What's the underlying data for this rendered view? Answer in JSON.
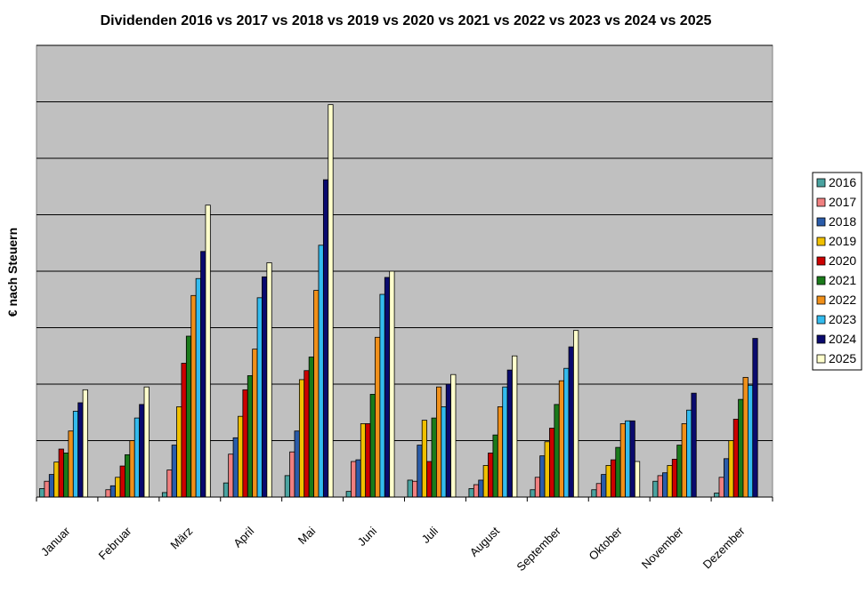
{
  "chart_data": {
    "type": "bar",
    "title": "Dividenden 2016 vs 2017 vs 2018 vs 2019 vs 2020 vs 2021 vs 2022 vs 2023 vs 2024 vs 2025",
    "xlabel": "",
    "ylabel": "€ nach Steuern",
    "ylim": [
      0,
      8
    ],
    "grid": true,
    "legend_position": "right",
    "plot_background": "#c0c0c0",
    "categories": [
      "Januar",
      "Februar",
      "März",
      "April",
      "Mai",
      "Juni",
      "Juli",
      "August",
      "September",
      "Oktober",
      "November",
      "Dezember"
    ],
    "series": [
      {
        "name": "2016",
        "color": "#4aa3a0",
        "values": [
          0.15,
          0,
          0.08,
          0.25,
          0.38,
          0.1,
          0.3,
          0.15,
          0.13,
          0.13,
          0.28,
          0.07
        ]
      },
      {
        "name": "2017",
        "color": "#f08080",
        "values": [
          0.28,
          0.13,
          0.48,
          0.76,
          0.8,
          0.63,
          0.28,
          0.22,
          0.35,
          0.24,
          0.38,
          0.35
        ]
      },
      {
        "name": "2018",
        "color": "#2a5caa",
        "values": [
          0.4,
          0.2,
          0.92,
          1.05,
          1.17,
          0.66,
          0.92,
          0.3,
          0.73,
          0.4,
          0.43,
          0.68
        ]
      },
      {
        "name": "2019",
        "color": "#f0c000",
        "values": [
          0.62,
          0.35,
          1.6,
          1.43,
          2.08,
          1.3,
          1.36,
          0.56,
          0.98,
          0.56,
          0.56,
          1.0
        ]
      },
      {
        "name": "2020",
        "color": "#cc0000",
        "values": [
          0.85,
          0.55,
          2.37,
          1.9,
          2.24,
          1.3,
          0.63,
          0.78,
          1.22,
          0.66,
          0.67,
          1.38
        ]
      },
      {
        "name": "2021",
        "color": "#1a7a1a",
        "values": [
          0.78,
          0.75,
          2.85,
          2.15,
          2.48,
          1.82,
          1.4,
          1.1,
          1.64,
          0.88,
          0.92,
          1.73
        ]
      },
      {
        "name": "2022",
        "color": "#f0901a",
        "values": [
          1.17,
          1.0,
          3.57,
          2.62,
          3.66,
          2.83,
          1.95,
          1.6,
          2.06,
          1.3,
          1.3,
          2.12
        ]
      },
      {
        "name": "2023",
        "color": "#33bbee",
        "values": [
          1.52,
          1.4,
          3.87,
          3.53,
          4.46,
          3.59,
          1.6,
          1.95,
          2.28,
          1.35,
          1.54,
          1.98
        ]
      },
      {
        "name": "2024",
        "color": "#0a0a6e",
        "values": [
          1.67,
          1.64,
          4.35,
          3.9,
          5.62,
          3.89,
          2.0,
          2.25,
          2.66,
          1.35,
          1.84,
          2.81
        ]
      },
      {
        "name": "2025",
        "color": "#ffffcc",
        "values": [
          1.9,
          1.95,
          5.17,
          4.15,
          6.95,
          4.0,
          2.17,
          2.5,
          2.95,
          0.63,
          0,
          0
        ]
      }
    ]
  }
}
